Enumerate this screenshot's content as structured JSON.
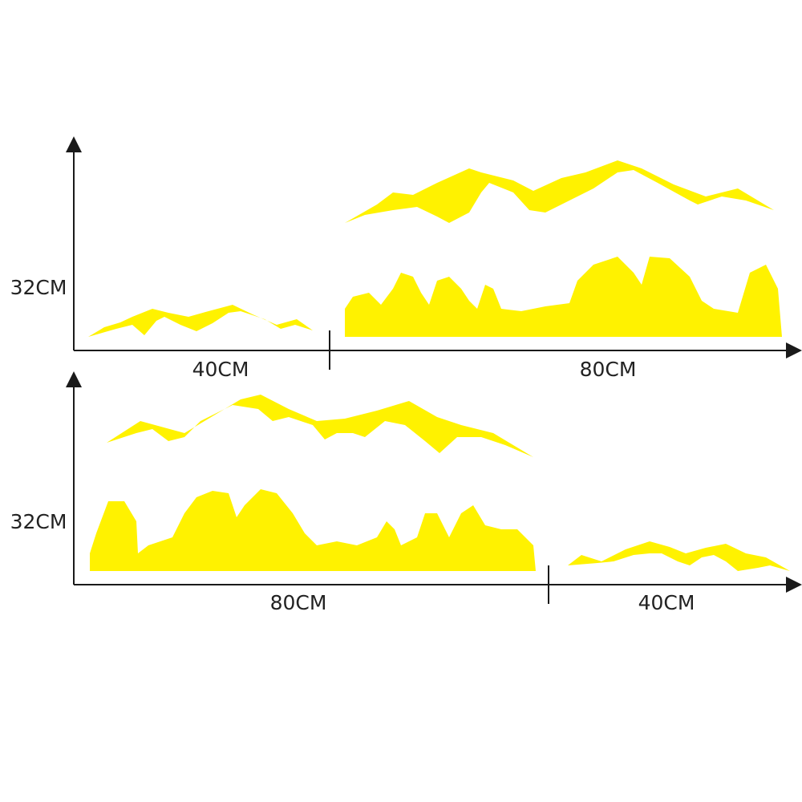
{
  "panels": [
    {
      "height_label": "32CM",
      "width_labels": [
        "40CM",
        "80CM"
      ]
    },
    {
      "height_label": "32CM",
      "width_labels": [
        "80CM",
        "40CM"
      ]
    }
  ]
}
